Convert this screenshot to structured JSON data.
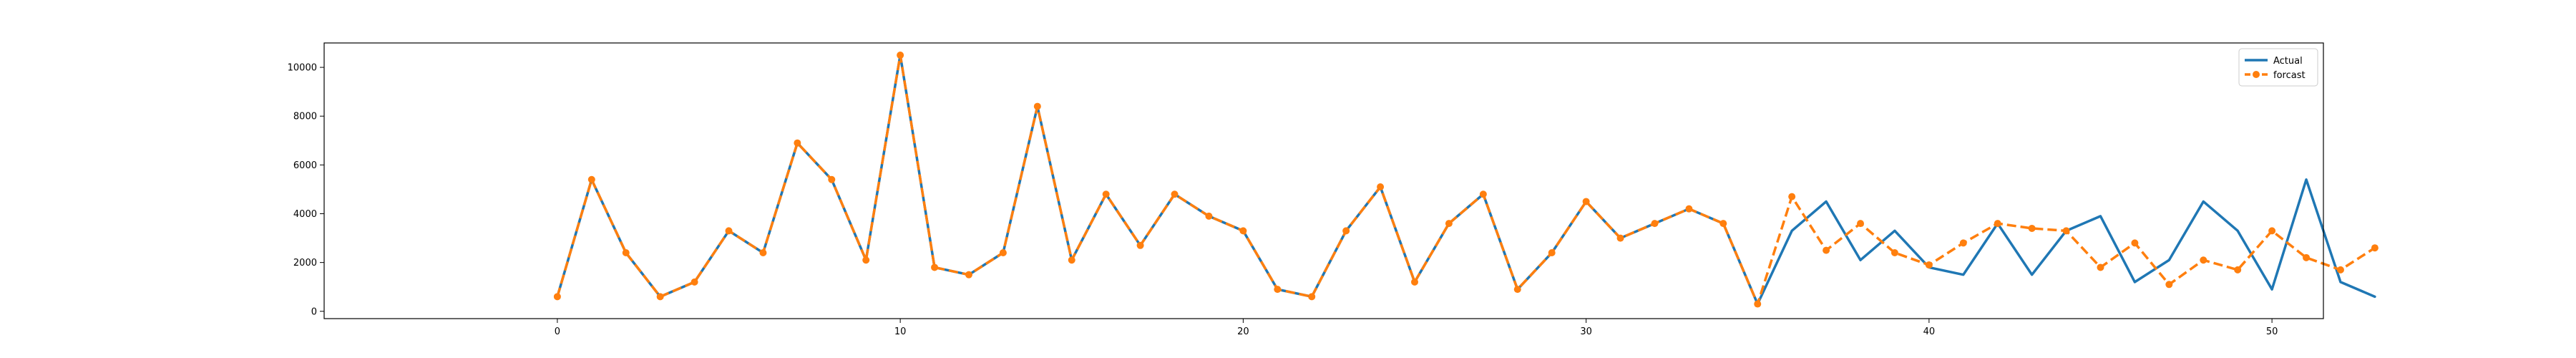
{
  "chart_data": {
    "type": "line",
    "title": "",
    "xlabel": "",
    "ylabel": "",
    "xlim": [
      -6.8,
      51.5
    ],
    "ylim": [
      -300,
      11000
    ],
    "xticks": [
      0,
      10,
      20,
      30,
      40,
      50
    ],
    "yticks": [
      0,
      2000,
      4000,
      6000,
      8000,
      10000
    ],
    "grid": false,
    "legend_position": "top-right",
    "x": [
      0,
      1,
      2,
      3,
      4,
      5,
      6,
      7,
      8,
      9,
      10,
      11,
      12,
      13,
      14,
      15,
      16,
      17,
      18,
      19,
      20,
      21,
      22,
      23,
      24,
      25,
      26,
      27,
      28,
      29,
      30,
      31,
      32,
      33,
      34,
      35,
      36,
      37,
      38,
      39,
      40,
      41,
      42,
      43,
      44,
      45,
      46,
      47,
      48,
      49,
      50,
      51,
      52,
      53
    ],
    "series": [
      {
        "name": "Actual",
        "color": "#1f77b4",
        "style": "solid",
        "values": [
          600,
          5400,
          2400,
          600,
          1200,
          3300,
          2400,
          6900,
          5400,
          2100,
          10500,
          1800,
          1500,
          2400,
          8400,
          2100,
          4800,
          2700,
          4800,
          3900,
          3300,
          900,
          600,
          3300,
          5100,
          1200,
          3600,
          4800,
          900,
          2400,
          4500,
          3000,
          3600,
          4200,
          3600,
          300,
          3300,
          4500,
          2100,
          3300,
          1800,
          1500,
          3600,
          1500,
          3300,
          3900,
          1200,
          2100,
          4500,
          3300,
          900,
          5400,
          1200,
          600
        ]
      },
      {
        "name": "forcast",
        "color": "#ff7f0e",
        "style": "dashed",
        "marker": "circle",
        "values": [
          600,
          5400,
          2400,
          600,
          1200,
          3300,
          2400,
          6900,
          5400,
          2100,
          10500,
          1800,
          1500,
          2400,
          8400,
          2100,
          4800,
          2700,
          4800,
          3900,
          3300,
          900,
          600,
          3300,
          5100,
          1200,
          3600,
          4800,
          900,
          2400,
          4500,
          3000,
          3600,
          4200,
          3600,
          300,
          4700,
          2500,
          3600,
          2400,
          1900,
          2800,
          3600,
          3400,
          3300,
          1800,
          2800,
          1100,
          2100,
          1700,
          3300,
          2200,
          1700,
          2600
        ]
      }
    ]
  }
}
